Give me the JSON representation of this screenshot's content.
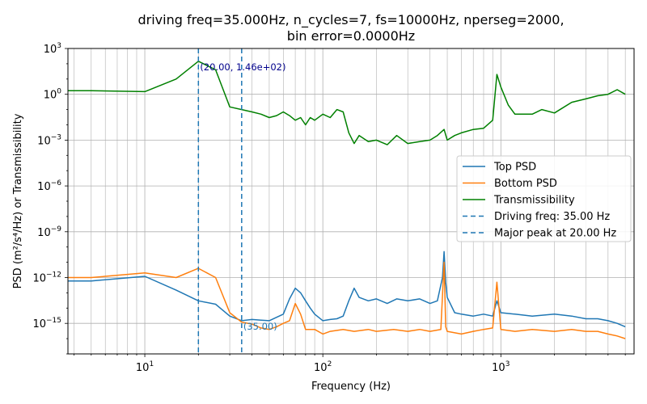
{
  "chart_data": {
    "type": "line",
    "title_line1": "driving freq=35.000Hz, n_cycles=7, fs=10000Hz, nperseg=2000,",
    "title_line2": "bin error=0.0000Hz",
    "xlabel": "Frequency (Hz)",
    "ylabel": "PSD (m²/s⁴/Hz) or Transmissibility",
    "x_scale": "log",
    "y_scale": "log",
    "xlim": [
      3.7,
      5600
    ],
    "ylim": [
      1e-17,
      1000
    ],
    "x_ticks": [
      {
        "value": 10,
        "base": "10",
        "exp": "1"
      },
      {
        "value": 100,
        "base": "10",
        "exp": "2"
      },
      {
        "value": 1000,
        "base": "10",
        "exp": "3"
      }
    ],
    "y_ticks": [
      {
        "value": 1e-15,
        "base": "10",
        "exp": "−15"
      },
      {
        "value": 1e-12,
        "base": "10",
        "exp": "−12"
      },
      {
        "value": 1e-09,
        "base": "10",
        "exp": "−9"
      },
      {
        "value": 1e-06,
        "base": "10",
        "exp": "−6"
      },
      {
        "value": 0.001,
        "base": "10",
        "exp": "−3"
      },
      {
        "value": 1,
        "base": "10",
        "exp": "0"
      },
      {
        "value": 1000,
        "base": "10",
        "exp": "3"
      }
    ],
    "grid": true,
    "legend_position": "center-right",
    "series": [
      {
        "name": "Top PSD",
        "color": "#1f77b4",
        "points": [
          [
            3.7,
            6e-13
          ],
          [
            5,
            6e-13
          ],
          [
            10,
            1.2e-12
          ],
          [
            15,
            1.5e-13
          ],
          [
            20,
            3e-14
          ],
          [
            25,
            1.8e-14
          ],
          [
            30,
            3e-15
          ],
          [
            35,
            1.5e-15
          ],
          [
            40,
            1.8e-15
          ],
          [
            45,
            1.6e-15
          ],
          [
            50,
            1.5e-15
          ],
          [
            55,
            2.5e-15
          ],
          [
            60,
            4e-15
          ],
          [
            65,
            4e-14
          ],
          [
            70,
            2e-13
          ],
          [
            75,
            1e-13
          ],
          [
            80,
            3e-14
          ],
          [
            85,
            1e-14
          ],
          [
            90,
            4e-15
          ],
          [
            100,
            1.5e-15
          ],
          [
            110,
            1.8e-15
          ],
          [
            120,
            2e-15
          ],
          [
            130,
            3e-15
          ],
          [
            140,
            3e-14
          ],
          [
            150,
            2e-13
          ],
          [
            160,
            5e-14
          ],
          [
            180,
            3e-14
          ],
          [
            200,
            4e-14
          ],
          [
            230,
            2e-14
          ],
          [
            260,
            4e-14
          ],
          [
            300,
            3e-14
          ],
          [
            350,
            4e-14
          ],
          [
            400,
            2e-14
          ],
          [
            440,
            3e-14
          ],
          [
            470,
            1e-12
          ],
          [
            480,
            5e-11
          ],
          [
            490,
            5e-13
          ],
          [
            500,
            5e-14
          ],
          [
            550,
            5e-15
          ],
          [
            600,
            4e-15
          ],
          [
            700,
            3e-15
          ],
          [
            800,
            4e-15
          ],
          [
            900,
            3e-15
          ],
          [
            950,
            3e-14
          ],
          [
            1000,
            5e-15
          ],
          [
            1200,
            4e-15
          ],
          [
            1500,
            3e-15
          ],
          [
            2000,
            4e-15
          ],
          [
            2500,
            3e-15
          ],
          [
            3000,
            2e-15
          ],
          [
            3500,
            2e-15
          ],
          [
            4000,
            1.5e-15
          ],
          [
            4500,
            1e-15
          ],
          [
            5000,
            6e-16
          ]
        ]
      },
      {
        "name": "Bottom PSD",
        "color": "#ff7f0e",
        "points": [
          [
            3.7,
            1e-12
          ],
          [
            5,
            1e-12
          ],
          [
            10,
            2e-12
          ],
          [
            15,
            1e-12
          ],
          [
            20,
            4e-12
          ],
          [
            25,
            1e-12
          ],
          [
            30,
            5e-15
          ],
          [
            35,
            1.2e-15
          ],
          [
            40,
            9e-16
          ],
          [
            45,
            5e-16
          ],
          [
            50,
            4e-16
          ],
          [
            55,
            6e-16
          ],
          [
            60,
            1e-15
          ],
          [
            65,
            1.5e-15
          ],
          [
            70,
            2e-14
          ],
          [
            75,
            4e-15
          ],
          [
            80,
            4e-16
          ],
          [
            90,
            4e-16
          ],
          [
            100,
            2e-16
          ],
          [
            110,
            3e-16
          ],
          [
            130,
            4e-16
          ],
          [
            150,
            3e-16
          ],
          [
            180,
            4e-16
          ],
          [
            200,
            3e-16
          ],
          [
            250,
            4e-16
          ],
          [
            300,
            3e-16
          ],
          [
            350,
            4e-16
          ],
          [
            400,
            3e-16
          ],
          [
            460,
            4e-16
          ],
          [
            480,
            1e-11
          ],
          [
            490,
            6e-16
          ],
          [
            500,
            3e-16
          ],
          [
            600,
            2e-16
          ],
          [
            700,
            3e-16
          ],
          [
            800,
            4e-16
          ],
          [
            900,
            5e-16
          ],
          [
            950,
            5e-13
          ],
          [
            1000,
            4e-16
          ],
          [
            1200,
            3e-16
          ],
          [
            1500,
            4e-16
          ],
          [
            2000,
            3e-16
          ],
          [
            2500,
            4e-16
          ],
          [
            3000,
            3e-16
          ],
          [
            3500,
            3e-16
          ],
          [
            4000,
            2e-16
          ],
          [
            4500,
            1.5e-16
          ],
          [
            5000,
            1e-16
          ]
        ]
      },
      {
        "name": "Transmissibility",
        "color": "#008000",
        "points": [
          [
            3.7,
            1.7
          ],
          [
            5,
            1.7
          ],
          [
            10,
            1.5
          ],
          [
            15,
            10
          ],
          [
            20,
            146
          ],
          [
            25,
            40
          ],
          [
            30,
            0.15
          ],
          [
            35,
            0.1
          ],
          [
            40,
            0.07
          ],
          [
            45,
            0.05
          ],
          [
            50,
            0.03
          ],
          [
            55,
            0.04
          ],
          [
            60,
            0.07
          ],
          [
            65,
            0.04
          ],
          [
            70,
            0.02
          ],
          [
            75,
            0.03
          ],
          [
            80,
            0.01
          ],
          [
            85,
            0.03
          ],
          [
            90,
            0.02
          ],
          [
            100,
            0.05
          ],
          [
            110,
            0.03
          ],
          [
            120,
            0.1
          ],
          [
            130,
            0.07
          ],
          [
            140,
            0.003
          ],
          [
            150,
            0.0006
          ],
          [
            160,
            0.002
          ],
          [
            180,
            0.0008
          ],
          [
            200,
            0.001
          ],
          [
            230,
            0.0005
          ],
          [
            260,
            0.002
          ],
          [
            300,
            0.0006
          ],
          [
            350,
            0.0008
          ],
          [
            400,
            0.001
          ],
          [
            440,
            0.002
          ],
          [
            480,
            0.005
          ],
          [
            500,
            0.001
          ],
          [
            550,
            0.002
          ],
          [
            600,
            0.003
          ],
          [
            700,
            0.005
          ],
          [
            800,
            0.006
          ],
          [
            900,
            0.02
          ],
          [
            950,
            20
          ],
          [
            1000,
            3
          ],
          [
            1100,
            0.2
          ],
          [
            1200,
            0.05
          ],
          [
            1500,
            0.05
          ],
          [
            1700,
            0.1
          ],
          [
            2000,
            0.06
          ],
          [
            2500,
            0.3
          ],
          [
            3000,
            0.5
          ],
          [
            3500,
            0.8
          ],
          [
            4000,
            1
          ],
          [
            4500,
            2
          ],
          [
            5000,
            1
          ]
        ]
      },
      {
        "name": "Driving freq: 35.00 Hz",
        "color": "#1f77b4",
        "style": "dashed",
        "x": 35
      },
      {
        "name": "Major peak at 20.00 Hz",
        "color": "#1f77b4",
        "style": "dashed",
        "x": 20
      }
    ],
    "annotations": [
      {
        "text": "(20.00, 1.46e+02)",
        "x": 20,
        "y": 146,
        "color": "#00008b"
      },
      {
        "text": "(35.00)",
        "x": 35,
        "y": 1.5e-15,
        "color": "#1f77b4"
      }
    ]
  }
}
